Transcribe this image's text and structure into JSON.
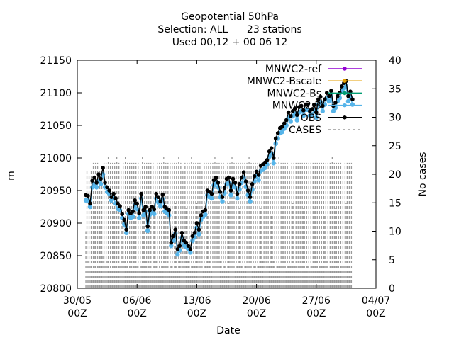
{
  "chart_data": {
    "type": "line",
    "title_lines": [
      "Geopotential 50hPa",
      "Selection: ALL      23 stations",
      "Used 00,12 + 00 06 12"
    ],
    "xlabel": "Date",
    "ylabel": "m",
    "y2label": "No cases",
    "ylim": [
      20800,
      21150
    ],
    "y2lim": [
      0,
      40
    ],
    "yticks": [
      "20800",
      "20850",
      "20900",
      "20950",
      "21000",
      "21050",
      "21100",
      "21150"
    ],
    "y2ticks": [
      "0",
      "5",
      "10",
      "15",
      "20",
      "25",
      "30",
      "35",
      "40"
    ],
    "xlim": [
      "2024-05-30T00",
      "2024-07-04T00"
    ],
    "xticks": [
      {
        "date": "2024-05-30T00",
        "line1": "30/05",
        "line2": "00Z"
      },
      {
        "date": "2024-06-06T00",
        "line1": "06/06",
        "line2": "00Z"
      },
      {
        "date": "2024-06-13T00",
        "line1": "13/06",
        "line2": "00Z"
      },
      {
        "date": "2024-06-20T00",
        "line1": "20/06",
        "line2": "00Z"
      },
      {
        "date": "2024-06-27T00",
        "line1": "27/06",
        "line2": "00Z"
      },
      {
        "date": "2024-07-04T00",
        "line1": "04/07",
        "line2": "00Z"
      }
    ],
    "legend_position": "top-right",
    "series_colors": {
      "MNWC2-ref": "#9400d3",
      "MNWC2-Bscale": "#e69f00",
      "MNWC2-Bs": "#009e73",
      "MNWC2-B": "#56b4e9",
      "OBS": "#000000",
      "CASES": "#999999"
    },
    "legend": [
      {
        "label": "MNWC2-ref",
        "color": "#9400d3",
        "style": "line-point"
      },
      {
        "label": "MNWC2-Bscale",
        "color": "#e69f00",
        "style": "line-point"
      },
      {
        "label": "MNWC2-Bs",
        "color": "#009e73",
        "style": "line-point"
      },
      {
        "label": "MNWC2-B",
        "color": "#56b4e9",
        "style": "line-point"
      },
      {
        "label": "OBS",
        "color": "#000000",
        "style": "line-point"
      },
      {
        "label": "CASES",
        "color": "#999999",
        "style": "dashed"
      }
    ],
    "geopotential_series": {
      "start": "2024-05-31T00",
      "step_hours": 6,
      "obs": [
        20943,
        20942,
        20930,
        20965,
        20970,
        20962,
        20975,
        20968,
        20985,
        20962,
        20955,
        20950,
        20940,
        20945,
        20938,
        20930,
        20926,
        20914,
        20905,
        20890,
        20920,
        20915,
        20918,
        20935,
        20930,
        20915,
        20945,
        20920,
        20925,
        20895,
        20920,
        20925,
        20921,
        20945,
        20940,
        20933,
        20944,
        20925,
        20922,
        20920,
        20870,
        20880,
        20890,
        20860,
        20865,
        20885,
        20873,
        20870,
        20865,
        20860,
        20880,
        20885,
        20900,
        20890,
        20912,
        20918,
        20920,
        20950,
        20948,
        20945,
        20966,
        20970,
        20962,
        20948,
        20940,
        20954,
        20968,
        20970,
        20950,
        20968,
        20962,
        20945,
        20960,
        20970,
        20978,
        20964,
        20950,
        20940,
        20960,
        20972,
        20979,
        20974,
        20988,
        20990,
        20993,
        20997,
        21010,
        21015,
        21000,
        21030,
        21038,
        21046,
        21048,
        21053,
        21058,
        21070,
        21064,
        21072,
        21076,
        21066,
        21078,
        21080,
        21073,
        21082,
        21082,
        21072,
        21075,
        21082,
        21070,
        21090,
        21094,
        21080,
        21090,
        21100,
        21095,
        21103,
        21080,
        21085,
        21095,
        21100,
        21110,
        21115,
        21118,
        21095,
        21102,
        21090
      ],
      "model": [
        20935,
        20935,
        20925,
        20955,
        20960,
        20955,
        20965,
        20960,
        20975,
        20955,
        20948,
        20945,
        20935,
        20938,
        20930,
        20922,
        20920,
        20908,
        20898,
        20885,
        20914,
        20908,
        20910,
        20928,
        20922,
        20908,
        20938,
        20912,
        20918,
        20888,
        20913,
        20918,
        20914,
        20938,
        20932,
        20926,
        20937,
        20918,
        20915,
        20912,
        20865,
        20873,
        20884,
        20852,
        20858,
        20878,
        20866,
        20863,
        20860,
        20855,
        20873,
        20878,
        20893,
        20883,
        20905,
        20910,
        20913,
        20943,
        20940,
        20938,
        20958,
        20963,
        20955,
        20940,
        20933,
        20946,
        20960,
        20962,
        20943,
        20960,
        20955,
        20938,
        20952,
        20962,
        20970,
        20956,
        20943,
        20933,
        20952,
        20964,
        20972,
        20966,
        20980,
        20982,
        20985,
        20990,
        21002,
        21007,
        20992,
        21022,
        21030,
        21038,
        21040,
        21045,
        21050,
        21062,
        21056,
        21064,
        21068,
        21058,
        21070,
        21072,
        21065,
        21074,
        21074,
        21065,
        21067,
        21074,
        21062,
        21082,
        21086,
        21072,
        21082,
        21092,
        21087,
        21095,
        21072,
        21077,
        21087,
        21092,
        21102,
        21107,
        21110,
        21087,
        21094,
        21082
      ]
    },
    "cases_series": {
      "start": "2024-05-31T00",
      "step_hours": 3,
      "counts": [
        10,
        21,
        5,
        20,
        4,
        21,
        3,
        22,
        15,
        22,
        3,
        22,
        4,
        21,
        11,
        21,
        6,
        22,
        4,
        22,
        5,
        23,
        3,
        22,
        3,
        22,
        14,
        22,
        4,
        23,
        3,
        22,
        4,
        21,
        12,
        22,
        5,
        23,
        4,
        22,
        3,
        22,
        5,
        22,
        3,
        22,
        15,
        22,
        4,
        22,
        3,
        21,
        4,
        23,
        14,
        22,
        5,
        22,
        3,
        22,
        4,
        22,
        3,
        22,
        14,
        21,
        5,
        22,
        3,
        22,
        3,
        22,
        4,
        23,
        14,
        22,
        4,
        22,
        3,
        22,
        4,
        22,
        3,
        22,
        15,
        22,
        3,
        23,
        5,
        22,
        3,
        21,
        4,
        22,
        14,
        22,
        5,
        22,
        3,
        23,
        4,
        22,
        4,
        22,
        15,
        22,
        3,
        22,
        4,
        21,
        3,
        22,
        4,
        22,
        13,
        22,
        5,
        22,
        3,
        22,
        4,
        23,
        4,
        22,
        14,
        22,
        5,
        22,
        3,
        22,
        4,
        21,
        3,
        22,
        15,
        22,
        4,
        23,
        4,
        22,
        3,
        22,
        4,
        22,
        14,
        22,
        4,
        22,
        3,
        22,
        4,
        22,
        4,
        23,
        14,
        22,
        3,
        22,
        4,
        22,
        3,
        22,
        4,
        22,
        14,
        21,
        5,
        22,
        3,
        22,
        4,
        22,
        4,
        22,
        13,
        22,
        5,
        22,
        3,
        22,
        4,
        23,
        4,
        22,
        14,
        22,
        5,
        22,
        3,
        22,
        4,
        21,
        4,
        22,
        15,
        22,
        4,
        22,
        3,
        22,
        4,
        22,
        4,
        22,
        14,
        22,
        3,
        22,
        4,
        22,
        3,
        22,
        4,
        22,
        14,
        22,
        5,
        22,
        3,
        22,
        4,
        22,
        4,
        22,
        13,
        22,
        5,
        22,
        3,
        22,
        4,
        23,
        4,
        22,
        14,
        22,
        5,
        22,
        3,
        22,
        4,
        21,
        4,
        22,
        15,
        22,
        4,
        22,
        3,
        22
      ]
    }
  }
}
